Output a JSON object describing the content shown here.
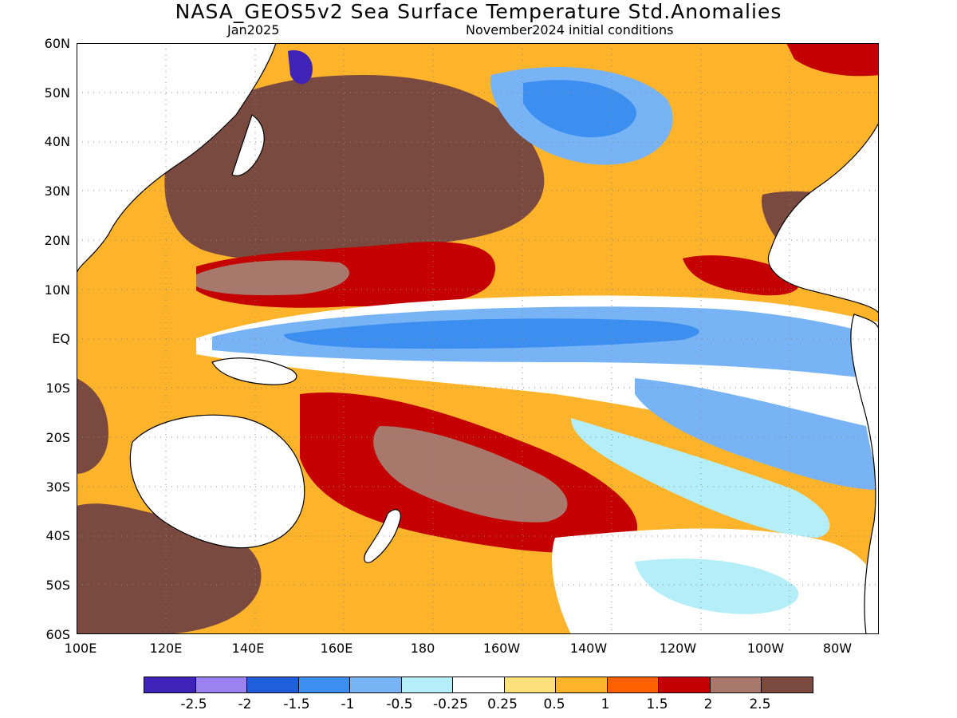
{
  "header": {
    "title": "NASA_GEOS5v2 Sea Surface Temperature Std.Anomalies",
    "subtitle_left": "Jan2025",
    "subtitle_right": "November2024 initial conditions"
  },
  "axes": {
    "lat_ticks": [
      "60N",
      "50N",
      "40N",
      "30N",
      "20N",
      "10N",
      "EQ",
      "10S",
      "20S",
      "30S",
      "40S",
      "50S",
      "60S"
    ],
    "lon_ticks": [
      "100E",
      "120E",
      "140E",
      "160E",
      "180",
      "160W",
      "140W",
      "120W",
      "100W",
      "80W"
    ]
  },
  "colorbar": {
    "colors": [
      "#3f22b8",
      "#9a82f0",
      "#1f5fdc",
      "#3c8ff0",
      "#78b4f5",
      "#b4eef8",
      "#ffffff",
      "#fde07a",
      "#fdb42a",
      "#fd6000",
      "#c40000",
      "#a8786c",
      "#7a4a40"
    ],
    "labels": [
      "-2.5",
      "-2",
      "-1.5",
      "-1",
      "-0.5",
      "-0.25",
      "0.25",
      "0.5",
      "1",
      "1.5",
      "2",
      "2.5"
    ]
  },
  "palette": {
    "land": "#ffffff",
    "coast": "#000000",
    "grid": "#888888"
  }
}
